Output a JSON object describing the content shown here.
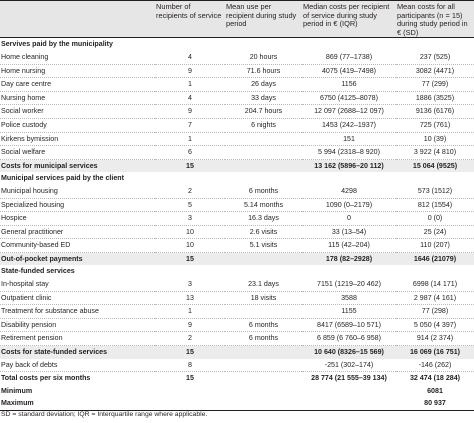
{
  "headers": [
    "",
    "Number of recipients of service",
    "Mean use per recipient during study period",
    "Median costs per recipient of service during study period in € (IQR)",
    "Mean costs for all participants (n = 15) during study period in € (SD)"
  ],
  "rows": [
    {
      "kind": "section",
      "cells": [
        "Servives paid by the municipality",
        "",
        "",
        "",
        ""
      ]
    },
    {
      "kind": "row",
      "cells": [
        "Home cleaning",
        "4",
        "20 hours",
        "869 (77–1738)",
        "237 (525)"
      ]
    },
    {
      "kind": "row",
      "cells": [
        "Home nursing",
        "9",
        "71.6 hours",
        "4075 (419–7498)",
        "3082 (4471)"
      ]
    },
    {
      "kind": "row",
      "cells": [
        "Day care centre",
        "1",
        "26 days",
        "1156",
        "77 (299)"
      ]
    },
    {
      "kind": "row",
      "cells": [
        "Nursing home",
        "4",
        "33 days",
        "6750 (4125–8078)",
        "1886 (3525)"
      ]
    },
    {
      "kind": "row",
      "cells": [
        "Social worker",
        "9",
        "204.7 hours",
        "12 097 (2688–12 097)",
        "9136 (6176)"
      ]
    },
    {
      "kind": "row",
      "cells": [
        "Police custody",
        "7",
        "6 nights",
        "1453 (242–1937)",
        "725 (761)"
      ]
    },
    {
      "kind": "row",
      "cells": [
        "Kirkens bymission",
        "1",
        "",
        "151",
        "10 (39)"
      ]
    },
    {
      "kind": "row",
      "cells": [
        "Social welfare",
        "6",
        "",
        "5 994 (2318–8 920)",
        "3 922 (4 810)"
      ]
    },
    {
      "kind": "total",
      "cells": [
        "Costs for municipal services",
        "15",
        "",
        "13 162 (5896–20 112)",
        "15 064 (9525)"
      ]
    },
    {
      "kind": "section",
      "cells": [
        "Municipal services paid by the client",
        "",
        "",
        "",
        ""
      ]
    },
    {
      "kind": "row",
      "cells": [
        "Municipal housing",
        "2",
        "6 months",
        "4298",
        "573 (1512)"
      ]
    },
    {
      "kind": "row",
      "cells": [
        "Specialized housing",
        "5",
        "5.14 months",
        "1090 (0–2179)",
        "812 (1554)"
      ]
    },
    {
      "kind": "row",
      "cells": [
        "Hospice",
        "3",
        "16.3 days",
        "0",
        "0 (0)"
      ]
    },
    {
      "kind": "row",
      "cells": [
        "General practitioner",
        "10",
        "2.6 visits",
        "33 (13–54)",
        "25 (24)"
      ]
    },
    {
      "kind": "row",
      "cells": [
        "Community-based ED",
        "10",
        "5.1 visits",
        "115 (42–204)",
        "110 (207)"
      ]
    },
    {
      "kind": "total",
      "cells": [
        "Out-of-pocket payments",
        "15",
        "",
        "178 (82–2928)",
        "1646 (21079)"
      ]
    },
    {
      "kind": "section",
      "cells": [
        "State-funded services",
        "",
        "",
        "",
        ""
      ]
    },
    {
      "kind": "row",
      "cells": [
        "In-hospital stay",
        "3",
        "23.1 days",
        "7151 (1219–20 462)",
        "6998 (14 171)"
      ]
    },
    {
      "kind": "row",
      "cells": [
        "Outpatient clinic",
        "13",
        "18 visits",
        "3588",
        "2 987 (4 161)"
      ]
    },
    {
      "kind": "row",
      "cells": [
        "Treatment for substance abuse",
        "1",
        "",
        "1155",
        "77 (298)"
      ]
    },
    {
      "kind": "row",
      "cells": [
        "Disability pension",
        "9",
        "6 months",
        "8417 (6589–10 571)",
        "5 050 (4 397)"
      ]
    },
    {
      "kind": "row",
      "cells": [
        "Retirement pension",
        "2",
        "6 months",
        "6 859 (6 760–6 958)",
        "914 (2 374)"
      ]
    },
    {
      "kind": "total",
      "cells": [
        "Costs for state-funded services",
        "15",
        "",
        "10 640 (8326–15 569)",
        "16 069 (16 751)"
      ]
    },
    {
      "kind": "row",
      "cells": [
        "Pay back of debts",
        "8",
        "",
        "-251 (302–174)",
        "-146 (262)"
      ]
    },
    {
      "kind": "grand",
      "cells": [
        "Total costs per six months",
        "15",
        "",
        "28 774 (21 555–39 134)",
        "32 474 (18 284)"
      ]
    },
    {
      "kind": "grand",
      "cells": [
        "Minimum",
        "",
        "",
        "",
        "6081"
      ]
    },
    {
      "kind": "grand last",
      "cells": [
        "Maximum",
        "",
        "",
        "",
        "80 937"
      ]
    }
  ],
  "footnote": "SD = standard deviation; IQR = Interquartile range where applicable."
}
